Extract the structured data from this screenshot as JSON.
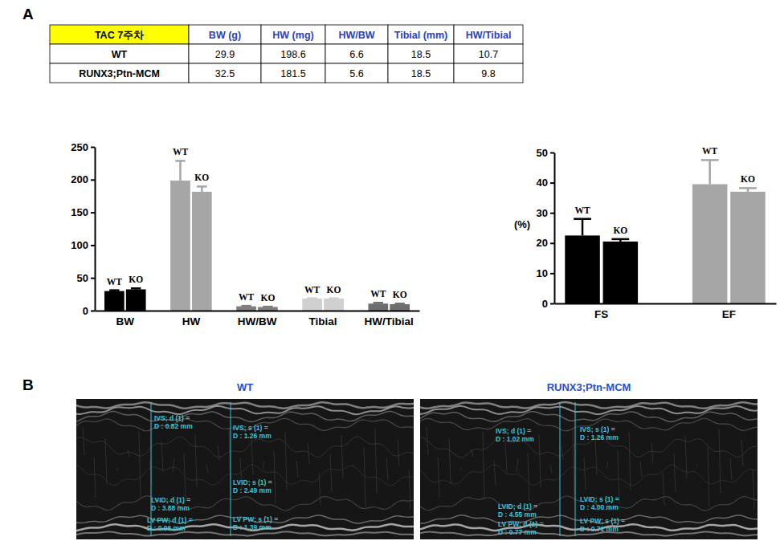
{
  "panel_labels": [
    "A",
    "B"
  ],
  "table": {
    "header": [
      "TAC 7주차",
      "BW (g)",
      "HW (mg)",
      "HW/BW",
      "Tibial (mm)",
      "HW/Tibial"
    ],
    "rows": [
      [
        "WT",
        29.9,
        198.6,
        6.6,
        18.5,
        10.7
      ],
      [
        "RUNX3;Ptn-MCM",
        32.5,
        181.5,
        5.6,
        18.5,
        9.8
      ]
    ]
  },
  "chart_data": [
    {
      "type": "bar",
      "categories": [
        "BW",
        "HW",
        "HW/BW",
        "Tibial",
        "HW/Tibial"
      ],
      "series": [
        {
          "name": "WT",
          "values": [
            29.9,
            198.6,
            6.6,
            18.5,
            10.7
          ],
          "errors": [
            1.2,
            30,
            0.6,
            0.3,
            1.2
          ],
          "colors": [
            "#000000",
            "#a6a6a6",
            "#7f7f7f",
            "#d0d0d0",
            "#6e6e6e"
          ]
        },
        {
          "name": "KO",
          "values": [
            32.5,
            181.5,
            5.6,
            18.5,
            9.8
          ],
          "errors": [
            1.5,
            8,
            0.4,
            0.3,
            0.8
          ],
          "colors": [
            "#000000",
            "#a6a6a6",
            "#7f7f7f",
            "#d0d0d0",
            "#6e6e6e"
          ]
        }
      ],
      "ylim": [
        0,
        250
      ],
      "yticks": [
        0,
        50,
        100,
        150,
        200,
        250
      ],
      "grid": false
    },
    {
      "type": "bar",
      "categories": [
        "FS",
        "EF"
      ],
      "y_label": "(%)",
      "series": [
        {
          "name": "WT",
          "values": [
            22.5,
            39.5
          ],
          "errors": [
            5.5,
            8
          ],
          "colors": [
            "#000000",
            "#a6a6a6"
          ]
        },
        {
          "name": "KO",
          "values": [
            20.5,
            37
          ],
          "errors": [
            0.8,
            1.2
          ],
          "colors": [
            "#000000",
            "#a6a6a6"
          ]
        }
      ],
      "ylim": [
        0,
        50
      ],
      "yticks": [
        0,
        10,
        20,
        30,
        40,
        50
      ],
      "grid": false
    }
  ],
  "echo": [
    {
      "title": "WT",
      "measurements": [
        {
          "label": "IVS; d (1) =",
          "value": "D : 0.82 mm"
        },
        {
          "label": "IVS; s (1) =",
          "value": "D : 1.26 mm"
        },
        {
          "label": "LVID; s (1) =",
          "value": "D : 2.49 mm"
        },
        {
          "label": "LVID; d (1) =",
          "value": "D : 3.88 mm"
        },
        {
          "label": "LV PW; d (1) =",
          "value": "D : 0.96 mm"
        },
        {
          "label": "LV PW; s (1) =",
          "value": "D : 1.39 mm"
        }
      ]
    },
    {
      "title": "RUNX3;Ptn-MCM",
      "measurements": [
        {
          "label": "IVS; d (1) =",
          "value": "D : 1.02 mm"
        },
        {
          "label": "IVS; s (1) =",
          "value": "D : 1.26 mm"
        },
        {
          "label": "LVID; s (1) =",
          "value": "D : 4.00 mm"
        },
        {
          "label": "LVID; d (1) =",
          "value": "D : 4.55 mm"
        },
        {
          "label": "LV PW; d (1) =",
          "value": "D : 0.77 mm"
        },
        {
          "label": "LV PW; s (1) =",
          "value": "D : 0.71 mm"
        }
      ]
    }
  ]
}
